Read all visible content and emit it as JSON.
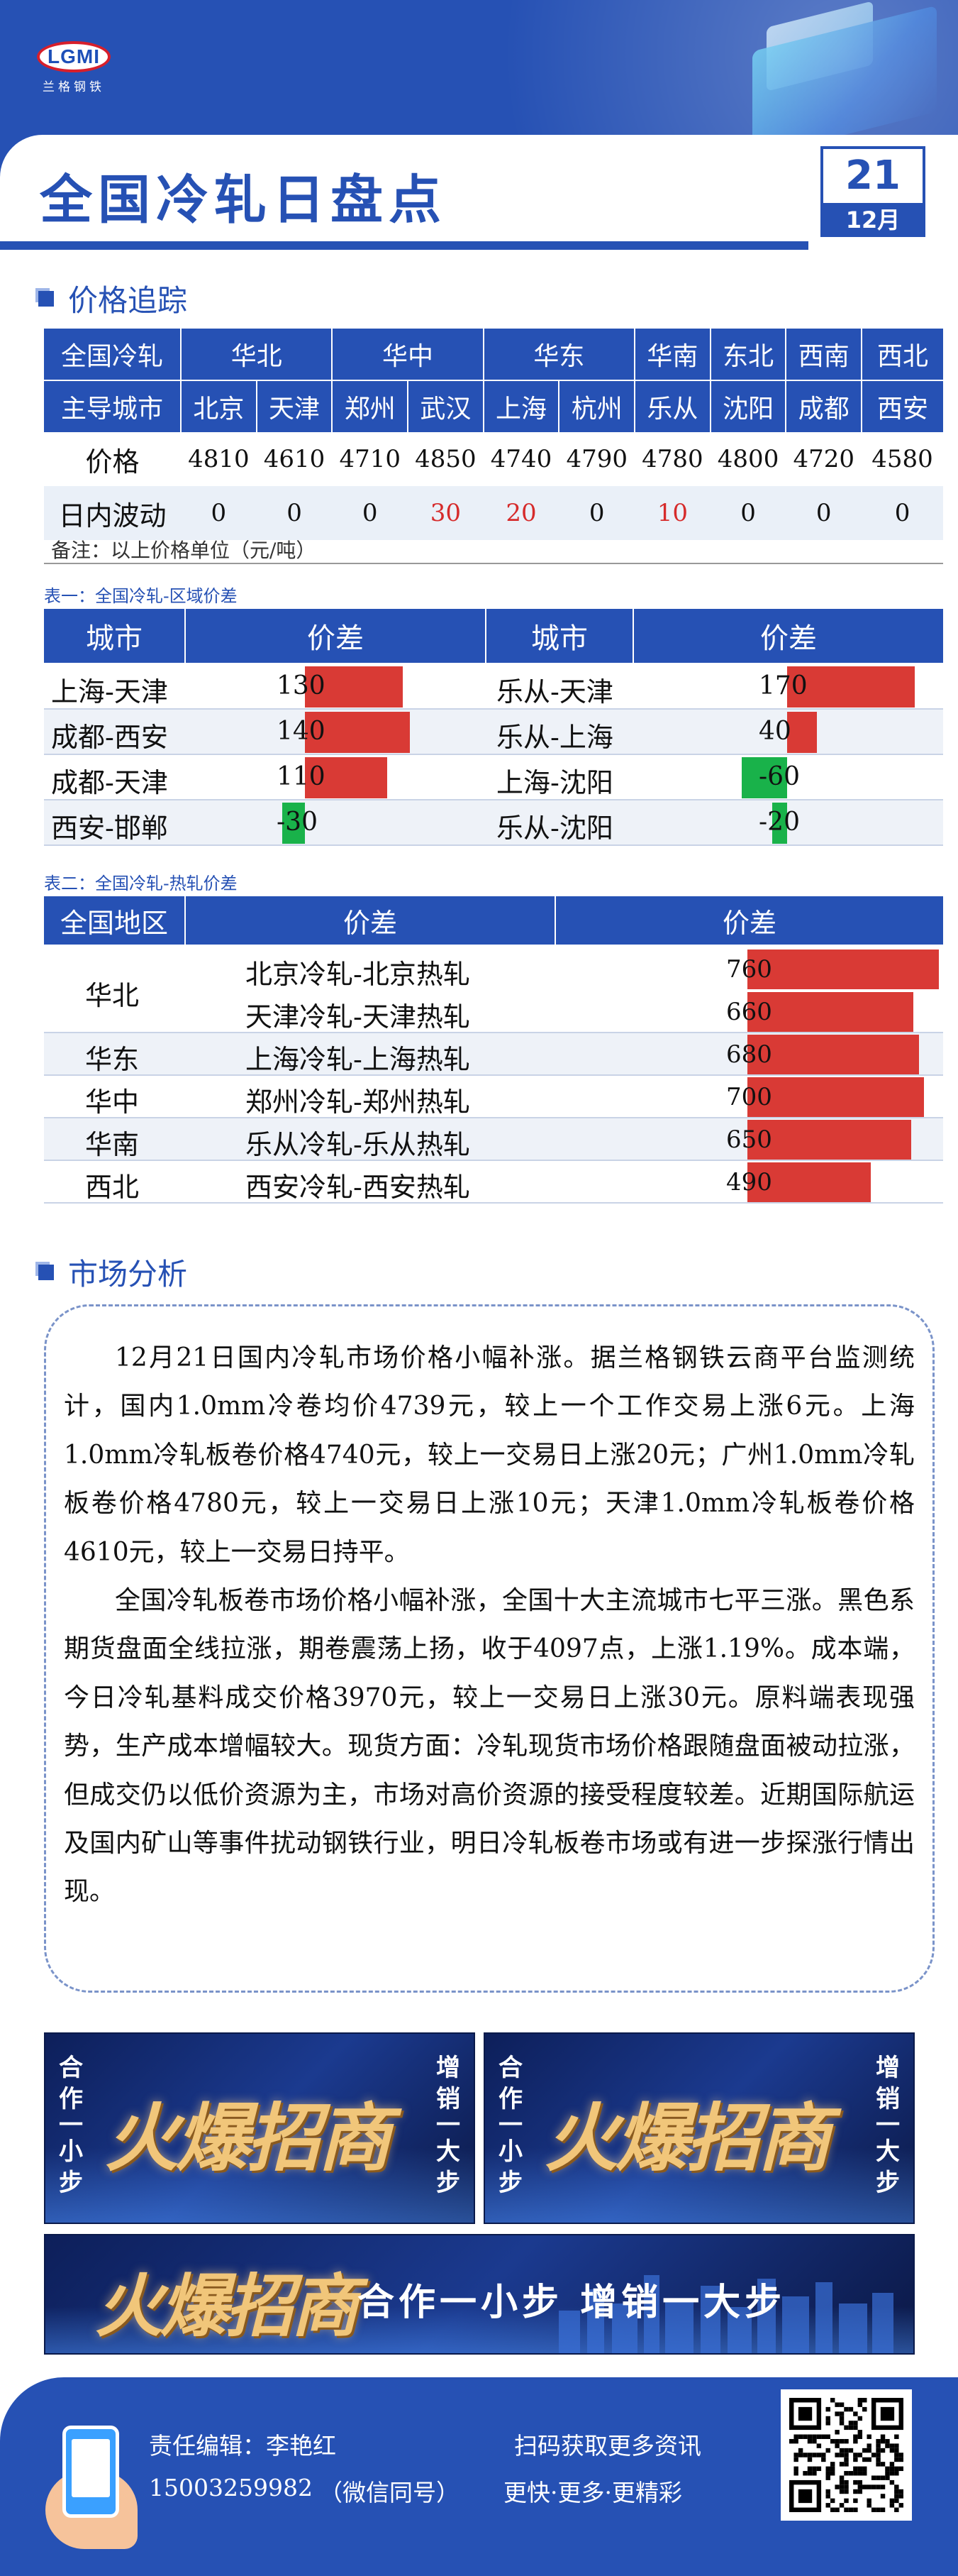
{
  "brand": {
    "logo_letters": "LGMI",
    "logo_name": "兰格钢铁"
  },
  "header": {
    "title": "全国冷轧日盘点",
    "day": "21",
    "month": "12月"
  },
  "sections": {
    "price_tracking": "价格追踪",
    "market_analysis": "市场分析"
  },
  "price_table": {
    "corner_label": "全国冷轧",
    "city_row_label": "主导城市",
    "regions": [
      "华北",
      "华中",
      "华东",
      "华南",
      "东北",
      "西南",
      "西北"
    ],
    "cities": [
      "北京",
      "天津",
      "郑州",
      "武汉",
      "上海",
      "杭州",
      "乐从",
      "沈阳",
      "成都",
      "西安"
    ],
    "price_label": "价格",
    "prices": [
      "4810",
      "4610",
      "4710",
      "4850",
      "4740",
      "4790",
      "4780",
      "4800",
      "4720",
      "4580"
    ],
    "change_label": "日内波动",
    "changes": [
      "0",
      "0",
      "0",
      "30",
      "20",
      "0",
      "10",
      "0",
      "0",
      "0"
    ],
    "note": "备注：以上价格单位（元/吨）"
  },
  "table1": {
    "caption": "表一：全国冷轧-区域价差",
    "col_city": "城市",
    "col_diff": "价差",
    "left": [
      {
        "pair": "上海-天津",
        "value": 130
      },
      {
        "pair": "成都-西安",
        "value": 140
      },
      {
        "pair": "成都-天津",
        "value": 110
      },
      {
        "pair": "西安-邯郸",
        "value": -30
      }
    ],
    "right": [
      {
        "pair": "乐从-天津",
        "value": 170
      },
      {
        "pair": "乐从-上海",
        "value": 40
      },
      {
        "pair": "上海-沈阳",
        "value": -60
      },
      {
        "pair": "乐从-沈阳",
        "value": -20
      }
    ]
  },
  "table2": {
    "caption": "表二：全国冷轧-热轧价差",
    "col_region": "全国地区",
    "col_diff1": "价差",
    "col_diff2": "价差",
    "rows": [
      {
        "region": "华北",
        "pair": "北京冷轧-北京热轧",
        "value": 760
      },
      {
        "region": "",
        "pair": "天津冷轧-天津热轧",
        "value": 660
      },
      {
        "region": "华东",
        "pair": "上海冷轧-上海热轧",
        "value": 680
      },
      {
        "region": "华中",
        "pair": "郑州冷轧-郑州热轧",
        "value": 700
      },
      {
        "region": "华南",
        "pair": "乐从冷轧-乐从热轧",
        "value": 650
      },
      {
        "region": "西北",
        "pair": "西安冷轧-西安热轧",
        "value": 490
      }
    ]
  },
  "analysis": {
    "p1": "12月21日国内冷轧市场价格小幅补涨。据兰格钢铁云商平台监测统计，国内1.0mm冷卷均价4739元，较上一个工作交易上涨6元。上海1.0mm冷轧板卷价格4740元，较上一交易日上涨20元；广州1.0mm冷轧板卷价格4780元，较上一交易日上涨10元；天津1.0mm冷轧板卷价格4610元，较上一交易日持平。",
    "p2": "全国冷轧板卷市场价格小幅补涨，全国十大主流城市七平三涨。黑色系期货盘面全线拉涨，期卷震荡上扬，收于4097点，上涨1.19%。成本端，今日冷轧基料成交价格3970元，较上一交易日上涨30元。原料端表现强势，生产成本增幅较大。现货方面：冷轧现货市场价格跟随盘面被动拉涨，但成交仍以低价资源为主，市场对高价资源的接受程度较差。近期国际航运及国内矿山等事件扰动钢铁行业，明日冷轧板卷市场或有进一步探涨行情出现。"
  },
  "ads": {
    "left_side": "合作一小步",
    "right_side": "增销一大步",
    "headline": "火爆招商",
    "slogan": "合作一小步  增销一大步"
  },
  "footer": {
    "editor": "责任编辑：李艳红",
    "phone": "15003259982",
    "wechat": "（微信同号）",
    "scan": "扫码获取更多资讯",
    "more": "更快·更多·更精彩"
  },
  "chart_data": [
    {
      "type": "bar",
      "title": "表一：全国冷轧-区域价差",
      "categories": [
        "上海-天津",
        "成都-西安",
        "成都-天津",
        "西安-邯郸",
        "乐从-天津",
        "乐从-上海",
        "上海-沈阳",
        "乐从-沈阳"
      ],
      "values": [
        130,
        140,
        110,
        -30,
        170,
        40,
        -60,
        -20
      ]
    },
    {
      "type": "bar",
      "title": "表二：全国冷轧-热轧价差",
      "categories": [
        "北京冷轧-北京热轧",
        "天津冷轧-天津热轧",
        "上海冷轧-上海热轧",
        "郑州冷轧-郑州热轧",
        "乐从冷轧-乐从热轧",
        "西安冷轧-西安热轧"
      ],
      "values": [
        760,
        660,
        680,
        700,
        650,
        490
      ]
    }
  ],
  "colors": {
    "brand_blue": "#2651b4",
    "up_red": "#d62b2b",
    "bar_red": "#d93a35",
    "bar_green": "#19b24a"
  }
}
